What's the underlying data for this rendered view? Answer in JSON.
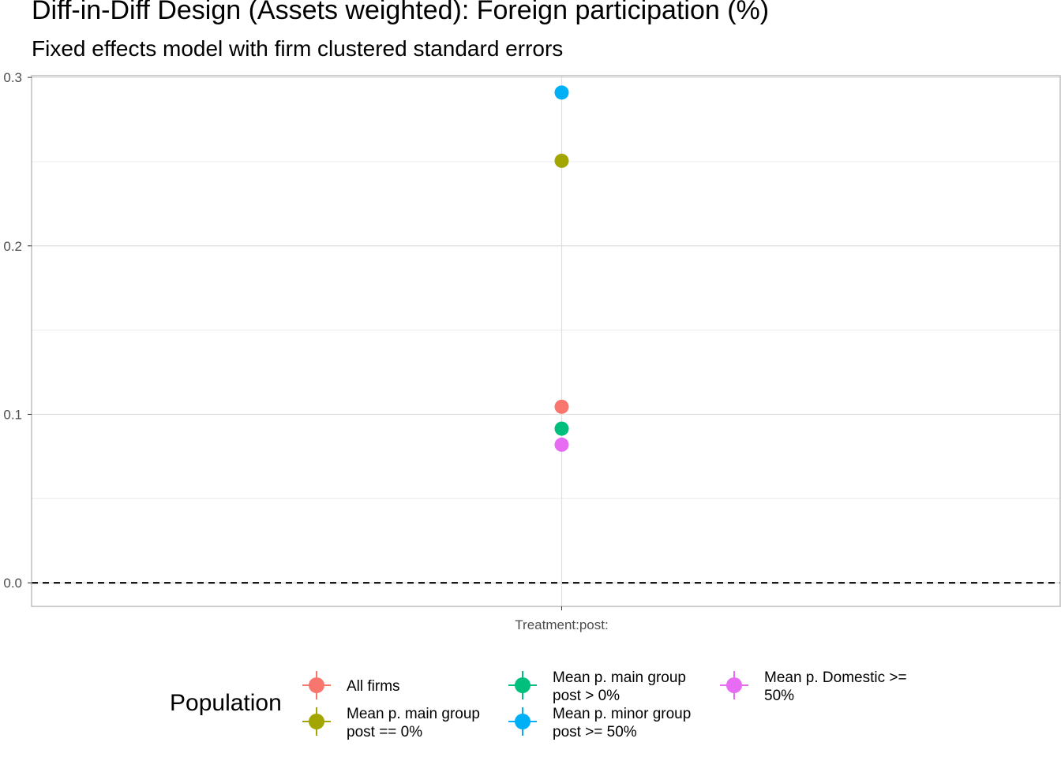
{
  "chart_data": {
    "type": "scatter",
    "title": "Diff-in-Diff Design (Assets weighted): Foreign participation (%)",
    "subtitle": "Fixed effects model with firm clustered standard errors",
    "xlabel": "",
    "ylabel": "",
    "categories": [
      "Treatment:post:"
    ],
    "ylim": [
      -0.014,
      0.301
    ],
    "yticks": [
      "0.0",
      "0.1",
      "0.2",
      "0.3"
    ],
    "grid": true,
    "reference_line": {
      "y": 0,
      "style": "dashed"
    },
    "legend": {
      "title": "Population",
      "position": "bottom"
    },
    "series": [
      {
        "name": "All firms",
        "color": "#F8766D",
        "values": [
          0.1045
        ]
      },
      {
        "name": "Mean p. main group post == 0%",
        "color": "#A3A500",
        "values": [
          0.2505
        ]
      },
      {
        "name": "Mean p. main group post > 0%",
        "color": "#00BF7D",
        "values": [
          0.0915
        ]
      },
      {
        "name": "Mean p. minor group post >= 50%",
        "color": "#00B0F6",
        "values": [
          0.291
        ]
      },
      {
        "name": "Mean p. Domestic >= 50%",
        "color": "#E76BF3",
        "values": [
          0.082
        ]
      }
    ]
  },
  "legend": {
    "title": "Population",
    "items": [
      {
        "line1": "All firms",
        "line2": ""
      },
      {
        "line1": "Mean p. main group",
        "line2": "post == 0%"
      },
      {
        "line1": "Mean p. main group",
        "line2": "post > 0%"
      },
      {
        "line1": "Mean p. minor group",
        "line2": "post >= 50%"
      },
      {
        "line1": "Mean p. Domestic >=",
        "line2": "50%"
      }
    ]
  }
}
